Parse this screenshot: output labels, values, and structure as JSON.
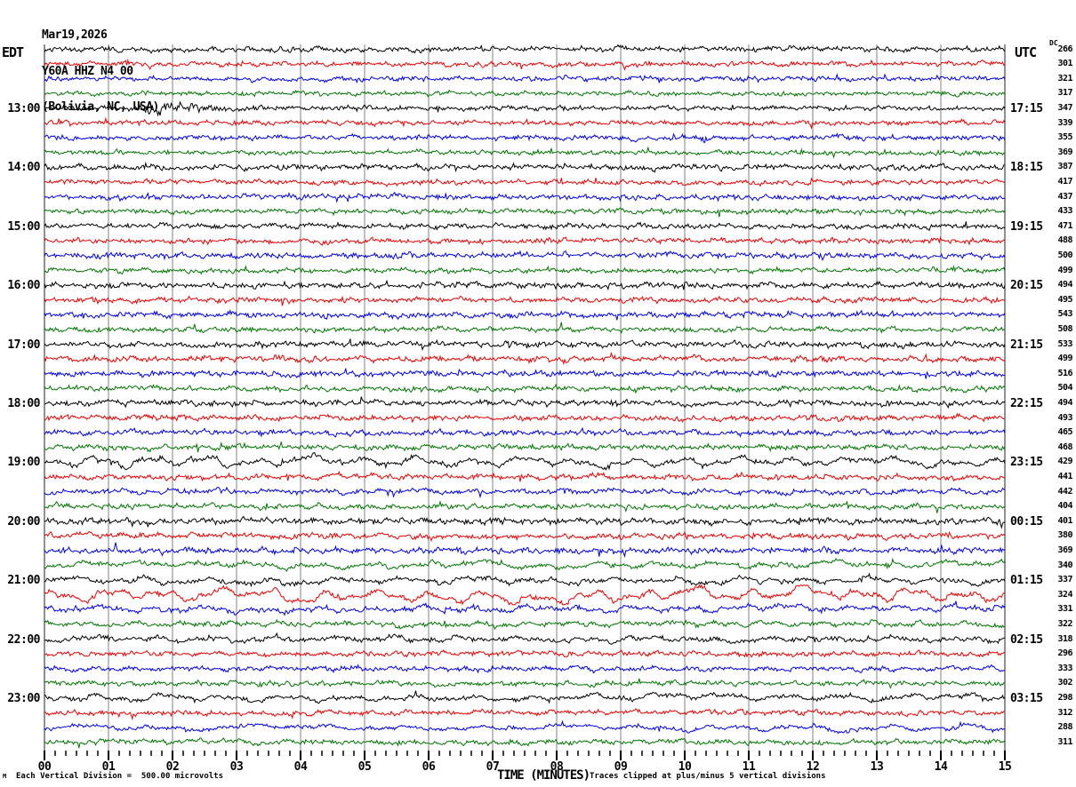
{
  "header": {
    "date": "Mar19,2026",
    "station": "Y60A HHZ N4 00",
    "location": "(Bolivia, NC, USA)"
  },
  "labels": {
    "left_tz": "EDT",
    "right_tz": "UTC",
    "dc_column": "DC",
    "xlabel": "TIME (MINUTES)",
    "scale_note": "Each Vertical Division =  500.00 microvolts",
    "clip_note": "Traces clipped at plus/minus 5 vertical divisions",
    "watermark": "M"
  },
  "colors": {
    "black": "#000000",
    "red": "#ee0000",
    "blue": "#0000ee",
    "green": "#007700",
    "grid": "#808080",
    "edge": "#222222",
    "tick": "#000000",
    "background": "#ffffff"
  },
  "chart_data": {
    "type": "line",
    "subtype": "helicorder-seismogram",
    "rows": 48,
    "minutes_per_row": 15,
    "x_range_minutes": [
      0,
      15
    ],
    "x_tick_labels": [
      "00",
      "01",
      "02",
      "03",
      "04",
      "05",
      "06",
      "07",
      "08",
      "09",
      "10",
      "11",
      "12",
      "13",
      "14",
      "15"
    ],
    "trace_colors_cycle": [
      "black",
      "red",
      "blue",
      "green"
    ],
    "edt_hour_labels": [
      {
        "row": 4,
        "label": "13:00"
      },
      {
        "row": 8,
        "label": "14:00"
      },
      {
        "row": 12,
        "label": "15:00"
      },
      {
        "row": 16,
        "label": "16:00"
      },
      {
        "row": 20,
        "label": "17:00"
      },
      {
        "row": 24,
        "label": "18:00"
      },
      {
        "row": 28,
        "label": "19:00"
      },
      {
        "row": 32,
        "label": "20:00"
      },
      {
        "row": 36,
        "label": "21:00"
      },
      {
        "row": 40,
        "label": "22:00"
      },
      {
        "row": 44,
        "label": "23:00"
      }
    ],
    "utc_hour_labels": [
      {
        "row": 4,
        "label": "17:15"
      },
      {
        "row": 8,
        "label": "18:15"
      },
      {
        "row": 12,
        "label": "19:15"
      },
      {
        "row": 16,
        "label": "20:15"
      },
      {
        "row": 20,
        "label": "21:15"
      },
      {
        "row": 24,
        "label": "22:15"
      },
      {
        "row": 28,
        "label": "23:15"
      },
      {
        "row": 32,
        "label": "00:15"
      },
      {
        "row": 36,
        "label": "01:15"
      },
      {
        "row": 40,
        "label": "02:15"
      },
      {
        "row": 44,
        "label": "03:15"
      }
    ],
    "dc_values": [
      266,
      301,
      321,
      317,
      347,
      339,
      355,
      369,
      387,
      417,
      437,
      433,
      471,
      488,
      500,
      499,
      494,
      495,
      543,
      508,
      533,
      499,
      516,
      504,
      494,
      493,
      465,
      468,
      429,
      441,
      442,
      404,
      401,
      380,
      369,
      340,
      337,
      324,
      331,
      322,
      318,
      296,
      333,
      302,
      298,
      312,
      288,
      311
    ],
    "traces": [
      {
        "hf": 2.7,
        "lf": 1.2
      },
      {
        "hf": 2.5,
        "lf": 1.0
      },
      {
        "hf": 2.5,
        "lf": 1.1
      },
      {
        "hf": 2.3,
        "lf": 1.0
      },
      {
        "hf": 2.5,
        "lf": 1.0,
        "events": [
          {
            "t0": 1.45,
            "t1": 3.3,
            "amp": 9,
            "mode": "hf"
          }
        ]
      },
      {
        "hf": 2.4,
        "lf": 1.0
      },
      {
        "hf": 2.7,
        "lf": 1.1
      },
      {
        "hf": 2.4,
        "lf": 1.0
      },
      {
        "hf": 2.9,
        "lf": 1.2
      },
      {
        "hf": 2.6,
        "lf": 1.1
      },
      {
        "hf": 2.7,
        "lf": 1.2
      },
      {
        "hf": 2.5,
        "lf": 1.0
      },
      {
        "hf": 2.7,
        "lf": 1.2
      },
      {
        "hf": 2.7,
        "lf": 1.1
      },
      {
        "hf": 2.9,
        "lf": 1.3
      },
      {
        "hf": 2.6,
        "lf": 1.1
      },
      {
        "hf": 3.0,
        "lf": 1.3
      },
      {
        "hf": 2.8,
        "lf": 1.2
      },
      {
        "hf": 2.8,
        "lf": 1.2
      },
      {
        "hf": 2.7,
        "lf": 1.2
      },
      {
        "hf": 3.0,
        "lf": 1.4
      },
      {
        "hf": 2.9,
        "lf": 1.3
      },
      {
        "hf": 2.9,
        "lf": 1.3
      },
      {
        "hf": 2.7,
        "lf": 1.2
      },
      {
        "hf": 3.0,
        "lf": 1.4
      },
      {
        "hf": 2.9,
        "lf": 1.3
      },
      {
        "hf": 2.8,
        "lf": 1.3
      },
      {
        "hf": 2.8,
        "lf": 1.3
      },
      {
        "hf": 2.5,
        "lf": 4.2,
        "lfp": 60,
        "events": [
          {
            "t0": 0,
            "t1": 7,
            "amp": 2.5,
            "mode": "lf"
          }
        ]
      },
      {
        "hf": 2.8,
        "lf": 1.6
      },
      {
        "hf": 2.6,
        "lf": 1.6,
        "lfp": 55
      },
      {
        "hf": 2.6,
        "lf": 1.5
      },
      {
        "hf": 3.2,
        "lf": 1.6
      },
      {
        "hf": 2.8,
        "lf": 1.4
      },
      {
        "hf": 3.2,
        "lf": 1.3
      },
      {
        "hf": 2.4,
        "lf": 3.0,
        "lfp": 65
      },
      {
        "hf": 2.6,
        "lf": 3.4,
        "lfp": 75
      },
      {
        "hf": 2.6,
        "lf": 6.2,
        "lfp": 60
      },
      {
        "hf": 2.8,
        "lf": 2.8,
        "lfp": 60
      },
      {
        "hf": 2.6,
        "lf": 2.2,
        "lfp": 55
      },
      {
        "hf": 2.6,
        "lf": 2.3,
        "lfp": 70
      },
      {
        "hf": 2.6,
        "lf": 1.4
      },
      {
        "hf": 2.4,
        "lf": 1.3
      },
      {
        "hf": 2.5,
        "lf": 1.4
      },
      {
        "hf": 2.4,
        "lf": 2.8,
        "lfp": 70,
        "events": [
          {
            "t0": 0,
            "t1": 2.2,
            "amp": 4,
            "mode": "lf"
          }
        ]
      },
      {
        "hf": 2.5,
        "lf": 1.2
      },
      {
        "hf": 2.2,
        "lf": 2.4,
        "lfp": 90,
        "events": [
          {
            "t0": 7,
            "t1": 15,
            "amp": 1.8,
            "mode": "lfgrow"
          }
        ]
      },
      {
        "hf": 2.5,
        "lf": 1.5,
        "lfp": 50
      }
    ]
  }
}
